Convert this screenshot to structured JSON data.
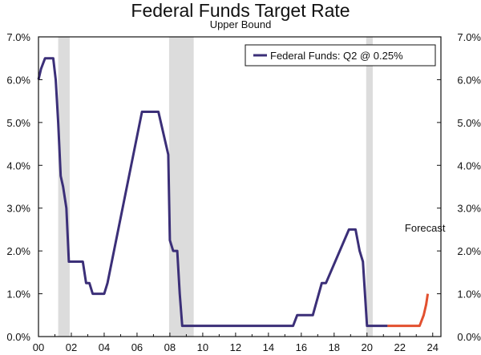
{
  "chart_data": {
    "type": "line",
    "title": "Federal Funds Target Rate",
    "subtitle": "Upper Bound",
    "xlabel": "",
    "ylabel": "",
    "xlim": [
      2000,
      2024.5
    ],
    "ylim": [
      0,
      7
    ],
    "y_ticks": [
      0,
      1,
      2,
      3,
      4,
      5,
      6,
      7
    ],
    "y_tick_labels": [
      "0.0%",
      "1.0%",
      "2.0%",
      "3.0%",
      "4.0%",
      "5.0%",
      "6.0%",
      "7.0%"
    ],
    "x_ticks": [
      2000,
      2002,
      2004,
      2006,
      2008,
      2010,
      2012,
      2014,
      2016,
      2018,
      2020,
      2022,
      2024
    ],
    "x_tick_labels": [
      "00",
      "02",
      "04",
      "06",
      "08",
      "10",
      "12",
      "14",
      "16",
      "18",
      "20",
      "22",
      "24"
    ],
    "legend": {
      "label": "Federal Funds: Q2 @ 0.25%",
      "position": "top-right"
    },
    "annotations": [
      {
        "text": "Forecast",
        "x": 2022.3,
        "y": 2.45
      }
    ],
    "shaded_regions": [
      [
        2001.2,
        2001.9
      ],
      [
        2007.95,
        2009.45
      ],
      [
        2019.95,
        2020.35
      ]
    ],
    "series": [
      {
        "name": "Federal Funds",
        "color": "#3b2f78",
        "points": [
          [
            2000.0,
            6.0
          ],
          [
            2000.15,
            6.25
          ],
          [
            2000.4,
            6.5
          ],
          [
            2000.8,
            6.5
          ],
          [
            2000.9,
            6.5
          ],
          [
            2001.05,
            6.0
          ],
          [
            2001.2,
            5.0
          ],
          [
            2001.35,
            3.75
          ],
          [
            2001.5,
            3.5
          ],
          [
            2001.7,
            3.0
          ],
          [
            2001.85,
            1.75
          ],
          [
            2002.5,
            1.75
          ],
          [
            2002.7,
            1.75
          ],
          [
            2002.9,
            1.25
          ],
          [
            2003.1,
            1.25
          ],
          [
            2003.3,
            1.0
          ],
          [
            2004.0,
            1.0
          ],
          [
            2004.2,
            1.25
          ],
          [
            2006.3,
            5.25
          ],
          [
            2007.3,
            5.25
          ],
          [
            2007.9,
            4.25
          ],
          [
            2008.0,
            2.25
          ],
          [
            2008.2,
            2.0
          ],
          [
            2008.45,
            2.0
          ],
          [
            2008.6,
            1.0
          ],
          [
            2008.75,
            0.25
          ],
          [
            2015.5,
            0.25
          ],
          [
            2015.75,
            0.5
          ],
          [
            2016.7,
            0.5
          ],
          [
            2017.25,
            1.25
          ],
          [
            2017.5,
            1.25
          ],
          [
            2018.9,
            2.5
          ],
          [
            2019.3,
            2.5
          ],
          [
            2019.55,
            2.0
          ],
          [
            2019.75,
            1.75
          ],
          [
            2020.0,
            0.25
          ],
          [
            2021.25,
            0.25
          ]
        ]
      },
      {
        "name": "Forecast",
        "color": "#e2502f",
        "points": [
          [
            2021.25,
            0.25
          ],
          [
            2023.2,
            0.25
          ],
          [
            2023.45,
            0.5
          ],
          [
            2023.6,
            0.75
          ],
          [
            2023.7,
            1.0
          ]
        ]
      }
    ]
  }
}
